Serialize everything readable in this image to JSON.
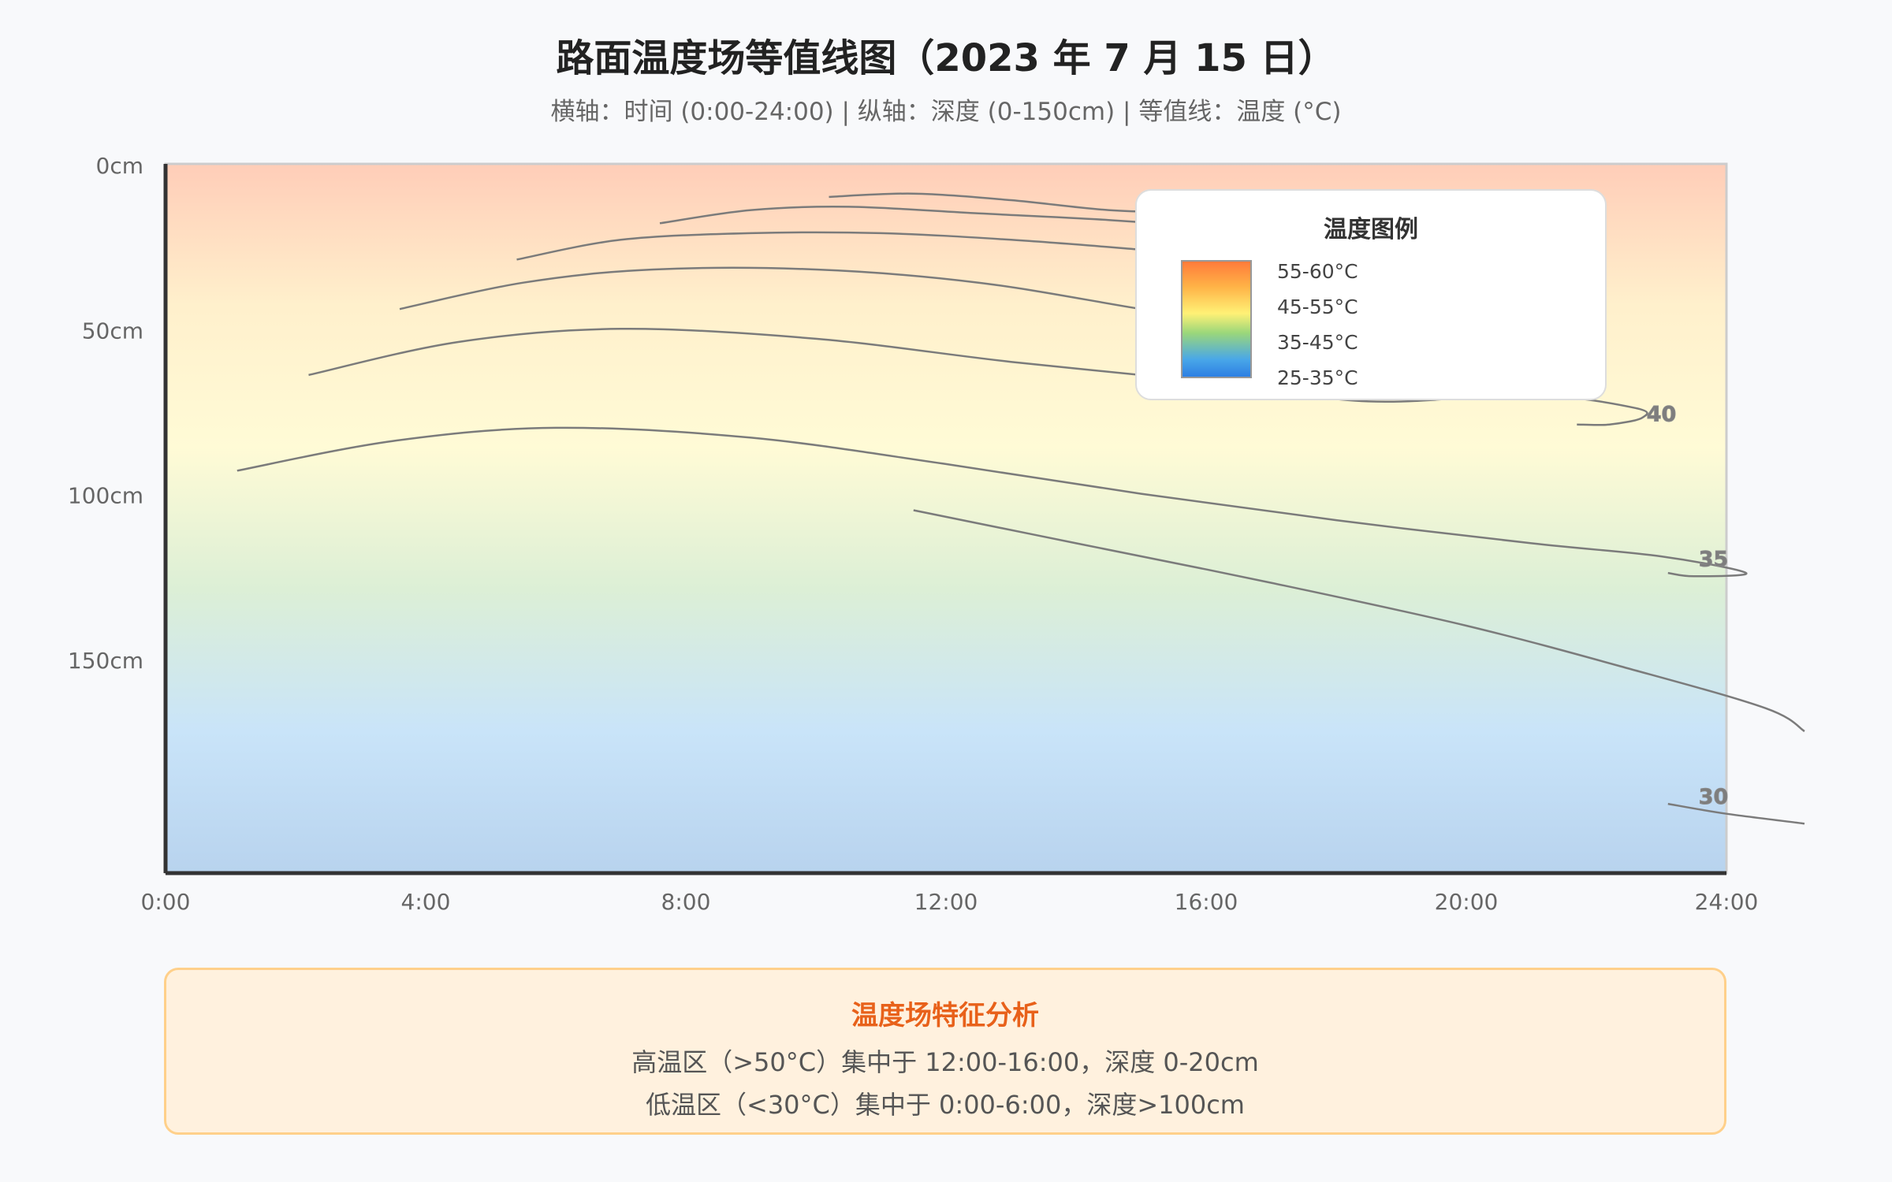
{
  "chart_data": {
    "type": "contour",
    "title": "路面温度场等值线图（2023 年 7 月 15 日）",
    "subtitle": "横轴：时间 (0:00-24:00) | 纵轴：深度 (0-150cm) | 等值线：温度 (°C)",
    "x_ticks": [
      "0:00",
      "4:00",
      "8:00",
      "12:00",
      "16:00",
      "20:00",
      "24:00"
    ],
    "x_tick_values": [
      0,
      4,
      8,
      12,
      16,
      20,
      24
    ],
    "y_ticks": [
      "0cm",
      "50cm",
      "100cm",
      "150cm"
    ],
    "y_tick_values": [
      0,
      50,
      100,
      150
    ],
    "xlim": [
      0,
      24
    ],
    "ylim": [
      0,
      215
    ],
    "y_inverted": true,
    "background_gradient": [
      "#ffcdb8",
      "#fff0cc",
      "#fffbd6",
      "#dcefd6",
      "#c9e4f9",
      "#b8d3ee"
    ],
    "contours": [
      {
        "label": "",
        "points": [
          [
            10.2,
            10
          ],
          [
            11.5,
            9
          ],
          [
            13,
            11
          ],
          [
            14.5,
            14
          ],
          [
            16,
            15
          ],
          [
            18,
            17
          ]
        ]
      },
      {
        "label": "",
        "points": [
          [
            7.6,
            18
          ],
          [
            9,
            14
          ],
          [
            10.5,
            13
          ],
          [
            12.5,
            15
          ],
          [
            14.5,
            17
          ],
          [
            16.5,
            20
          ],
          [
            18,
            23
          ]
        ]
      },
      {
        "label": "",
        "points": [
          [
            5.4,
            29
          ],
          [
            7,
            23
          ],
          [
            9,
            21
          ],
          [
            11,
            21
          ],
          [
            13,
            23
          ],
          [
            15,
            26
          ],
          [
            18,
            31
          ]
        ]
      },
      {
        "label": "",
        "points": [
          [
            3.6,
            44
          ],
          [
            5.5,
            36
          ],
          [
            7.5,
            32
          ],
          [
            10,
            32
          ],
          [
            12.5,
            36
          ],
          [
            15,
            44
          ],
          [
            17.5,
            52
          ]
        ]
      },
      {
        "label": "40",
        "label_pos": [
          23.0,
          78
        ],
        "points": [
          [
            2.2,
            64
          ],
          [
            4.5,
            54
          ],
          [
            7,
            50
          ],
          [
            10,
            53
          ],
          [
            13,
            60
          ],
          [
            16,
            66
          ],
          [
            18.5,
            72
          ],
          [
            21,
            70
          ],
          [
            22.6,
            74
          ],
          [
            22.7,
            77
          ],
          [
            22.2,
            79
          ],
          [
            21.7,
            79
          ]
        ]
      },
      {
        "label": "35",
        "label_pos": [
          23.8,
          122
        ],
        "points": [
          [
            1.1,
            93
          ],
          [
            3.5,
            84
          ],
          [
            6,
            80
          ],
          [
            9,
            83
          ],
          [
            12,
            91
          ],
          [
            15,
            100
          ],
          [
            18,
            108
          ],
          [
            21,
            115
          ],
          [
            23,
            119
          ],
          [
            24.3,
            124
          ],
          [
            23.5,
            125
          ],
          [
            23.1,
            124
          ]
        ]
      },
      {
        "label": "30",
        "label_pos": [
          23.8,
          194
        ],
        "points": [
          [
            11.5,
            105
          ],
          [
            14,
            115
          ],
          [
            17,
            127
          ],
          [
            20,
            140
          ],
          [
            22.5,
            153
          ],
          [
            24.6,
            165
          ],
          [
            25.2,
            172
          ]
        ]
      },
      {
        "label": "",
        "points": [
          [
            23.1,
            194
          ],
          [
            24,
            197
          ],
          [
            25.2,
            200
          ]
        ]
      }
    ]
  },
  "legend": {
    "title": "温度图例",
    "items": [
      "55-60°C",
      "45-55°C",
      "35-45°C",
      "25-35°C"
    ]
  },
  "analysis": {
    "title": "温度场特征分析",
    "lines": [
      "高温区（>50°C）集中于 12:00-16:00，深度 0-20cm",
      "低温区（<30°C）集中于 0:00-6:00，深度>100cm"
    ]
  },
  "colors": {
    "contour": "#7b7b7b",
    "axis": "#333333",
    "label": "#666666"
  }
}
